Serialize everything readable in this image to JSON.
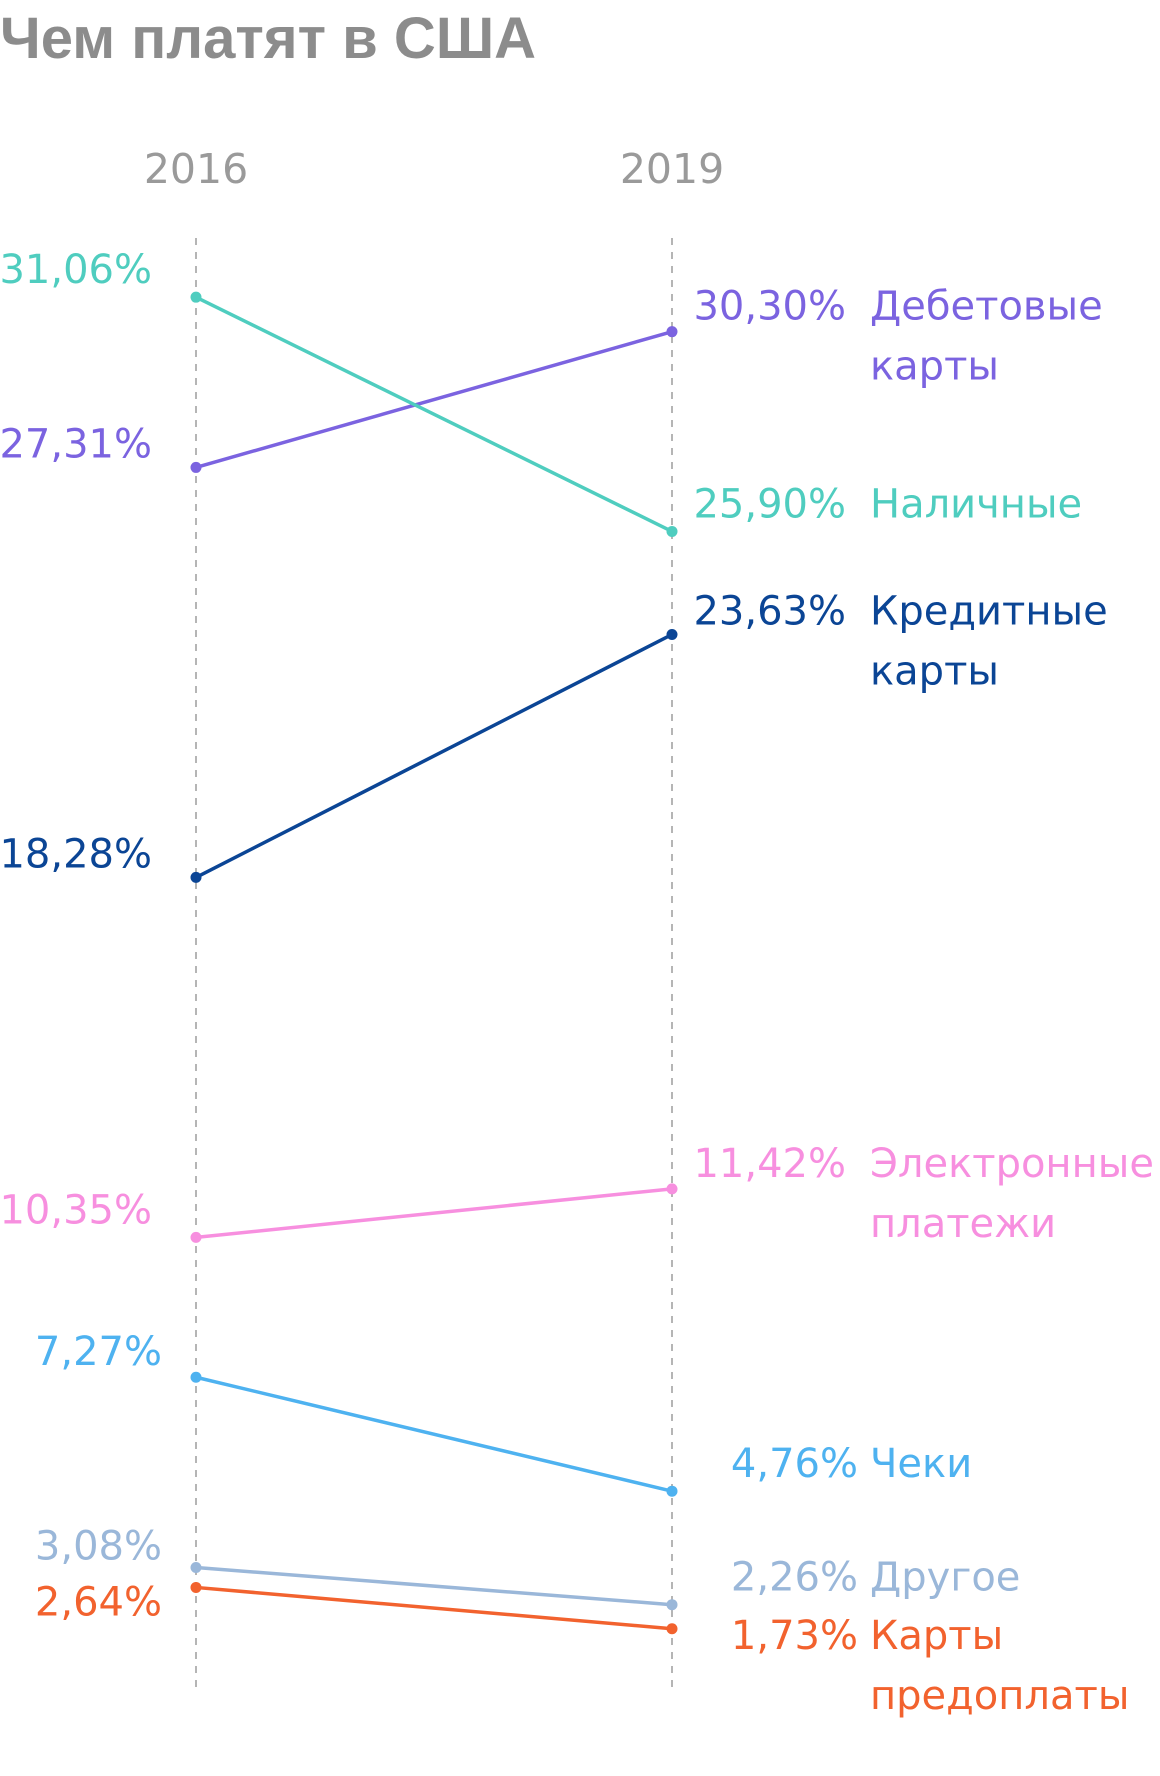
{
  "chart_data": {
    "type": "line",
    "title": "Чем платят в США",
    "x": [
      "2016",
      "2019"
    ],
    "ylim": [
      0,
      35
    ],
    "grid": false,
    "series": [
      {
        "name": "Дебетовые карты",
        "label_lines": [
          "Дебетовые",
          "карты"
        ],
        "values": [
          27.31,
          30.3
        ],
        "labels": [
          "27,31%",
          "30,30%"
        ],
        "color": "#7b63e0"
      },
      {
        "name": "Наличные",
        "label_lines": [
          "Наличные"
        ],
        "values": [
          31.06,
          25.9
        ],
        "labels": [
          "31,06%",
          "25,90%"
        ],
        "color": "#4fcdbf"
      },
      {
        "name": "Кредитные карты",
        "label_lines": [
          "Кредитные",
          "карты"
        ],
        "values": [
          18.28,
          23.63
        ],
        "labels": [
          "18,28%",
          "23,63%"
        ],
        "color": "#0b4595"
      },
      {
        "name": "Электронные платежи",
        "label_lines": [
          "Электронные",
          "платежи"
        ],
        "values": [
          10.35,
          11.42
        ],
        "labels": [
          "10,35%",
          "11,42%"
        ],
        "color": "#f78fdf"
      },
      {
        "name": "Чеки",
        "label_lines": [
          "Чеки"
        ],
        "values": [
          7.27,
          4.76
        ],
        "labels": [
          "7,27%",
          "4,76%"
        ],
        "color": "#4eb2f0"
      },
      {
        "name": "Другое",
        "label_lines": [
          "Другое"
        ],
        "values": [
          3.08,
          2.26
        ],
        "labels": [
          "3,08%",
          "2,26%"
        ],
        "color": "#9ab7d9"
      },
      {
        "name": "Карты предоплаты",
        "label_lines": [
          "Карты",
          "предоплаты"
        ],
        "values": [
          2.64,
          1.73
        ],
        "labels": [
          "2,64%",
          "1,73%"
        ],
        "color": "#f2622e"
      }
    ]
  }
}
